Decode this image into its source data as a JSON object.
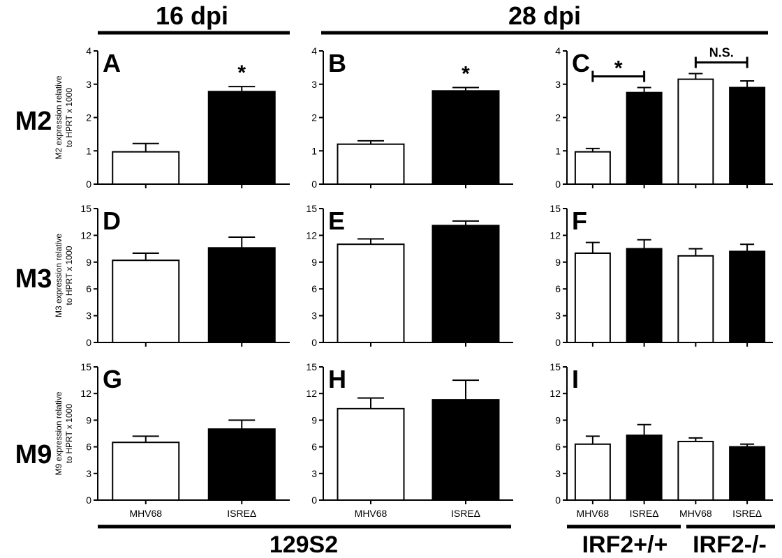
{
  "headers": {
    "time_left": "16 dpi",
    "time_right": "28 dpi",
    "genes": [
      "M2",
      "M3",
      "M9"
    ],
    "strain": "129S2",
    "group_wt": "IRF2+/+",
    "group_ko": "IRF2-/-"
  },
  "chart_data": [
    {
      "panel": "A",
      "type": "bar",
      "row": 0,
      "col": 0,
      "ylabel": [
        "M2 expression relative",
        "to HPRT x 1000"
      ],
      "ylim": [
        0,
        4
      ],
      "yticks": [
        0,
        1,
        2,
        3,
        4
      ],
      "categories": [
        "MHV68",
        "ISREΔ"
      ],
      "show_xlabels": false,
      "values": [
        0.97,
        2.78
      ],
      "errors": [
        0.25,
        0.15
      ],
      "fill": [
        "white",
        "black"
      ],
      "stars": [
        {
          "text": "*",
          "over": 1
        }
      ]
    },
    {
      "panel": "B",
      "type": "bar",
      "row": 0,
      "col": 1,
      "ylabel": [],
      "ylim": [
        0,
        4
      ],
      "yticks": [
        0,
        1,
        2,
        3,
        4
      ],
      "categories": [
        "MHV68",
        "ISREΔ"
      ],
      "show_xlabels": false,
      "values": [
        1.2,
        2.8
      ],
      "errors": [
        0.1,
        0.1
      ],
      "fill": [
        "white",
        "black"
      ],
      "stars": [
        {
          "text": "*",
          "over": 1
        }
      ]
    },
    {
      "panel": "C",
      "type": "bar",
      "row": 0,
      "col": 2,
      "ylabel": [],
      "ylim": [
        0,
        4
      ],
      "yticks": [
        0,
        1,
        2,
        3,
        4
      ],
      "categories": [
        "MHV68",
        "ISREΔ",
        "MHV68",
        "ISREΔ"
      ],
      "show_xlabels": false,
      "values": [
        0.97,
        2.75,
        3.15,
        2.9
      ],
      "errors": [
        0.1,
        0.15,
        0.17,
        0.2
      ],
      "fill": [
        "white",
        "black",
        "white",
        "black"
      ],
      "brackets": [
        {
          "from": 0,
          "to": 1,
          "text": "*"
        },
        {
          "from": 2,
          "to": 3,
          "text": "N.S."
        }
      ]
    },
    {
      "panel": "D",
      "type": "bar",
      "row": 1,
      "col": 0,
      "ylabel": [
        "M3 expression relative",
        "to HPRT x 1000"
      ],
      "ylim": [
        0,
        15
      ],
      "yticks": [
        0,
        3,
        6,
        9,
        12,
        15
      ],
      "categories": [
        "MHV68",
        "ISREΔ"
      ],
      "show_xlabels": false,
      "values": [
        9.2,
        10.6
      ],
      "errors": [
        0.8,
        1.2
      ],
      "fill": [
        "white",
        "black"
      ]
    },
    {
      "panel": "E",
      "type": "bar",
      "row": 1,
      "col": 1,
      "ylabel": [],
      "ylim": [
        0,
        15
      ],
      "yticks": [
        0,
        3,
        6,
        9,
        12,
        15
      ],
      "categories": [
        "MHV68",
        "ISREΔ"
      ],
      "show_xlabels": false,
      "values": [
        11.0,
        13.1
      ],
      "errors": [
        0.6,
        0.5
      ],
      "fill": [
        "white",
        "black"
      ]
    },
    {
      "panel": "F",
      "type": "bar",
      "row": 1,
      "col": 2,
      "ylabel": [],
      "ylim": [
        0,
        15
      ],
      "yticks": [
        0,
        3,
        6,
        9,
        12,
        15
      ],
      "categories": [
        "MHV68",
        "ISREΔ",
        "MHV68",
        "ISREΔ"
      ],
      "show_xlabels": false,
      "values": [
        10.0,
        10.5,
        9.7,
        10.2
      ],
      "errors": [
        1.2,
        1.0,
        0.8,
        0.8
      ],
      "fill": [
        "white",
        "black",
        "white",
        "black"
      ]
    },
    {
      "panel": "G",
      "type": "bar",
      "row": 2,
      "col": 0,
      "ylabel": [
        "M9 expression relative",
        "to HPRT x 1000"
      ],
      "ylim": [
        0,
        15
      ],
      "yticks": [
        0,
        3,
        6,
        9,
        12,
        15
      ],
      "categories": [
        "MHV68",
        "ISREΔ"
      ],
      "show_xlabels": true,
      "values": [
        6.5,
        8.0
      ],
      "errors": [
        0.7,
        1.0
      ],
      "fill": [
        "white",
        "black"
      ]
    },
    {
      "panel": "H",
      "type": "bar",
      "row": 2,
      "col": 1,
      "ylabel": [],
      "ylim": [
        0,
        15
      ],
      "yticks": [
        0,
        3,
        6,
        9,
        12,
        15
      ],
      "categories": [
        "MHV68",
        "ISREΔ"
      ],
      "show_xlabels": true,
      "values": [
        10.3,
        11.3
      ],
      "errors": [
        1.2,
        2.2
      ],
      "fill": [
        "white",
        "black"
      ]
    },
    {
      "panel": "I",
      "type": "bar",
      "row": 2,
      "col": 2,
      "ylabel": [],
      "ylim": [
        0,
        15
      ],
      "yticks": [
        0,
        3,
        6,
        9,
        12,
        15
      ],
      "categories": [
        "MHV68",
        "ISREΔ",
        "MHV68",
        "ISREΔ"
      ],
      "show_xlabels": true,
      "values": [
        6.3,
        7.3,
        6.6,
        6.0
      ],
      "errors": [
        0.9,
        1.2,
        0.4,
        0.3
      ],
      "fill": [
        "white",
        "black",
        "white",
        "black"
      ]
    }
  ]
}
